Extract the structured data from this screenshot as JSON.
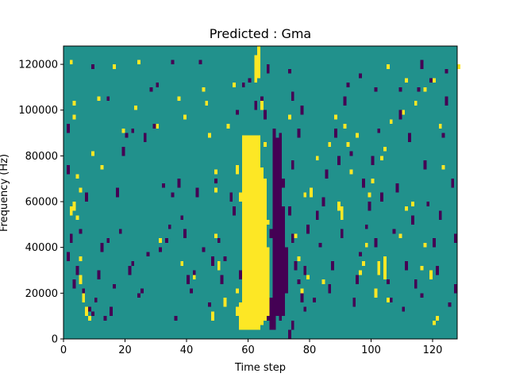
{
  "chart_data": {
    "type": "heatmap",
    "title": "Predicted : Gma",
    "xlabel": "Time step",
    "ylabel": "Frequency (Hz)",
    "xlim": [
      0,
      128
    ],
    "ylim": [
      0,
      128000
    ],
    "x_ticks": [
      0,
      20,
      40,
      60,
      80,
      100,
      120
    ],
    "y_ticks": [
      0,
      20000,
      40000,
      60000,
      80000,
      100000,
      120000
    ],
    "grid": false,
    "legend": "none",
    "colormap": "viridis",
    "value_range": [
      -1,
      1
    ],
    "colors": {
      "low": "#440154",
      "mid": "#21918c",
      "high": "#fde725"
    },
    "background_value": 0,
    "time_bins": 128,
    "freq_bins": 128,
    "freq_bin_hz": 1000,
    "high_cells": [
      [
        58,
        4,
        89
      ],
      [
        59,
        4,
        89
      ],
      [
        60,
        4,
        89
      ],
      [
        61,
        4,
        89
      ],
      [
        62,
        4,
        89
      ],
      [
        63,
        4,
        89
      ],
      [
        64,
        6,
        75
      ],
      [
        65,
        8,
        70
      ],
      [
        66,
        10,
        40
      ],
      [
        57,
        4,
        16
      ],
      [
        56,
        10,
        14
      ],
      [
        59,
        60,
        70
      ],
      [
        57,
        60,
        64
      ],
      [
        58,
        48,
        52
      ],
      [
        56,
        72,
        76
      ],
      [
        62,
        112,
        124
      ],
      [
        63,
        114,
        128
      ],
      [
        64,
        100,
        104
      ],
      [
        3,
        56,
        60
      ],
      [
        2,
        54,
        58
      ],
      [
        4,
        52,
        54
      ],
      [
        5,
        34,
        36
      ],
      [
        5,
        24,
        28
      ],
      [
        6,
        16,
        20
      ],
      [
        7,
        10,
        14
      ],
      [
        8,
        8,
        10
      ],
      [
        2,
        120,
        122
      ],
      [
        3,
        96,
        98
      ],
      [
        3,
        102,
        104
      ],
      [
        4,
        70,
        72
      ],
      [
        5,
        64,
        66
      ],
      [
        9,
        80,
        82
      ],
      [
        12,
        74,
        76
      ],
      [
        11,
        104,
        106
      ],
      [
        16,
        118,
        120
      ],
      [
        19,
        90,
        92
      ],
      [
        23,
        100,
        102
      ],
      [
        30,
        92,
        94
      ],
      [
        31,
        42,
        44
      ],
      [
        37,
        104,
        106
      ],
      [
        38,
        32,
        34
      ],
      [
        39,
        96,
        98
      ],
      [
        42,
        26,
        28
      ],
      [
        45,
        108,
        110
      ],
      [
        46,
        102,
        104
      ],
      [
        47,
        88,
        90
      ],
      [
        48,
        8,
        12
      ],
      [
        49,
        64,
        66
      ],
      [
        50,
        30,
        34
      ],
      [
        49,
        72,
        74
      ],
      [
        49,
        44,
        46
      ],
      [
        24,
        120,
        122
      ],
      [
        52,
        14,
        18
      ],
      [
        53,
        92,
        94
      ],
      [
        55,
        110,
        112
      ],
      [
        56,
        20,
        22
      ],
      [
        75,
        44,
        46
      ],
      [
        76,
        34,
        36
      ],
      [
        77,
        20,
        22
      ],
      [
        79,
        26,
        28
      ],
      [
        80,
        62,
        66
      ],
      [
        82,
        78,
        80
      ],
      [
        84,
        24,
        26
      ],
      [
        86,
        84,
        86
      ],
      [
        88,
        96,
        98
      ],
      [
        89,
        56,
        60
      ],
      [
        90,
        52,
        58
      ],
      [
        91,
        92,
        94
      ],
      [
        92,
        84,
        86
      ],
      [
        93,
        72,
        74
      ],
      [
        95,
        88,
        90
      ],
      [
        96,
        28,
        30
      ],
      [
        97,
        32,
        34
      ],
      [
        98,
        40,
        42
      ],
      [
        99,
        62,
        64
      ],
      [
        100,
        68,
        70
      ],
      [
        101,
        18,
        22
      ],
      [
        102,
        28,
        34
      ],
      [
        104,
        26,
        36
      ],
      [
        105,
        16,
        18
      ],
      [
        104,
        82,
        84
      ],
      [
        103,
        78,
        80
      ],
      [
        106,
        94,
        96
      ],
      [
        105,
        118,
        120
      ],
      [
        110,
        98,
        100
      ],
      [
        111,
        112,
        114
      ],
      [
        113,
        58,
        60
      ],
      [
        114,
        102,
        104
      ],
      [
        116,
        30,
        32
      ],
      [
        117,
        40,
        42
      ],
      [
        119,
        26,
        30
      ],
      [
        120,
        6,
        8
      ],
      [
        121,
        8,
        10
      ],
      [
        123,
        74,
        76
      ],
      [
        128,
        118,
        120
      ],
      [
        109,
        44,
        46
      ],
      [
        111,
        56,
        58
      ],
      [
        117,
        108,
        110
      ],
      [
        120,
        112,
        114
      ],
      [
        122,
        92,
        94
      ],
      [
        66,
        50,
        52
      ],
      [
        65,
        84,
        86
      ],
      [
        73,
        96,
        98
      ],
      [
        78,
        62,
        64
      ]
    ],
    "low_cells": [
      [
        67,
        4,
        18
      ],
      [
        68,
        4,
        92
      ],
      [
        69,
        10,
        88
      ],
      [
        70,
        8,
        90
      ],
      [
        71,
        10,
        58
      ],
      [
        72,
        20,
        40
      ],
      [
        66,
        8,
        14
      ],
      [
        65,
        26,
        30
      ],
      [
        66,
        34,
        38
      ],
      [
        67,
        44,
        48
      ],
      [
        68,
        56,
        60
      ],
      [
        69,
        62,
        66
      ],
      [
        71,
        66,
        70
      ],
      [
        73,
        54,
        58
      ],
      [
        74,
        42,
        46
      ],
      [
        75,
        30,
        34
      ],
      [
        76,
        24,
        26
      ],
      [
        77,
        16,
        20
      ],
      [
        78,
        12,
        14
      ],
      [
        74,
        4,
        8
      ],
      [
        73,
        0,
        4
      ],
      [
        74,
        74,
        78
      ],
      [
        76,
        88,
        92
      ],
      [
        77,
        98,
        102
      ],
      [
        74,
        104,
        108
      ],
      [
        73,
        116,
        118
      ],
      [
        66,
        116,
        120
      ],
      [
        64,
        104,
        106
      ],
      [
        65,
        96,
        100
      ],
      [
        62,
        100,
        104
      ],
      [
        2,
        42,
        46
      ],
      [
        3,
        22,
        26
      ],
      [
        4,
        28,
        32
      ],
      [
        5,
        46,
        48
      ],
      [
        6,
        18,
        22
      ],
      [
        7,
        60,
        64
      ],
      [
        8,
        12,
        14
      ],
      [
        9,
        10,
        12
      ],
      [
        10,
        16,
        18
      ],
      [
        11,
        26,
        30
      ],
      [
        12,
        38,
        42
      ],
      [
        13,
        8,
        10
      ],
      [
        14,
        42,
        44
      ],
      [
        15,
        10,
        14
      ],
      [
        16,
        22,
        24
      ],
      [
        17,
        62,
        66
      ],
      [
        18,
        46,
        48
      ],
      [
        19,
        80,
        84
      ],
      [
        20,
        88,
        90
      ],
      [
        21,
        28,
        32
      ],
      [
        22,
        32,
        34
      ],
      [
        24,
        18,
        20
      ],
      [
        25,
        20,
        22
      ],
      [
        26,
        86,
        90
      ],
      [
        27,
        36,
        38
      ],
      [
        28,
        108,
        110
      ],
      [
        29,
        92,
        94
      ],
      [
        30,
        110,
        112
      ],
      [
        31,
        38,
        40
      ],
      [
        32,
        66,
        68
      ],
      [
        33,
        42,
        44
      ],
      [
        34,
        48,
        50
      ],
      [
        35,
        62,
        64
      ],
      [
        36,
        8,
        10
      ],
      [
        37,
        66,
        70
      ],
      [
        38,
        52,
        54
      ],
      [
        39,
        44,
        48
      ],
      [
        40,
        24,
        28
      ],
      [
        41,
        20,
        22
      ],
      [
        42,
        28,
        30
      ],
      [
        43,
        62,
        66
      ],
      [
        44,
        120,
        122
      ],
      [
        45,
        38,
        40
      ],
      [
        47,
        14,
        16
      ],
      [
        48,
        32,
        36
      ],
      [
        49,
        68,
        70
      ],
      [
        50,
        42,
        44
      ],
      [
        51,
        24,
        28
      ],
      [
        52,
        34,
        36
      ],
      [
        54,
        60,
        64
      ],
      [
        55,
        54,
        58
      ],
      [
        57,
        26,
        30
      ],
      [
        58,
        110,
        112
      ],
      [
        59,
        50,
        52
      ],
      [
        60,
        34,
        38
      ],
      [
        61,
        40,
        42
      ],
      [
        62,
        48,
        52
      ],
      [
        63,
        56,
        58
      ],
      [
        1,
        90,
        94
      ],
      [
        1,
        72,
        76
      ],
      [
        1,
        34,
        38
      ],
      [
        78,
        28,
        32
      ],
      [
        79,
        46,
        50
      ],
      [
        81,
        16,
        18
      ],
      [
        82,
        52,
        56
      ],
      [
        83,
        40,
        42
      ],
      [
        84,
        58,
        62
      ],
      [
        85,
        70,
        74
      ],
      [
        86,
        20,
        24
      ],
      [
        87,
        30,
        34
      ],
      [
        88,
        88,
        92
      ],
      [
        89,
        76,
        80
      ],
      [
        90,
        44,
        48
      ],
      [
        91,
        102,
        106
      ],
      [
        92,
        110,
        112
      ],
      [
        93,
        80,
        82
      ],
      [
        94,
        14,
        18
      ],
      [
        95,
        24,
        28
      ],
      [
        96,
        36,
        38
      ],
      [
        97,
        66,
        70
      ],
      [
        98,
        48,
        50
      ],
      [
        99,
        56,
        60
      ],
      [
        100,
        76,
        80
      ],
      [
        101,
        40,
        44
      ],
      [
        102,
        90,
        92
      ],
      [
        103,
        60,
        64
      ],
      [
        104,
        32,
        36
      ],
      [
        105,
        24,
        26
      ],
      [
        106,
        16,
        18
      ],
      [
        107,
        46,
        48
      ],
      [
        108,
        64,
        68
      ],
      [
        109,
        96,
        100
      ],
      [
        110,
        12,
        14
      ],
      [
        111,
        30,
        34
      ],
      [
        112,
        86,
        90
      ],
      [
        113,
        50,
        54
      ],
      [
        114,
        22,
        26
      ],
      [
        115,
        108,
        110
      ],
      [
        116,
        18,
        20
      ],
      [
        117,
        74,
        78
      ],
      [
        118,
        58,
        60
      ],
      [
        119,
        112,
        114
      ],
      [
        120,
        40,
        44
      ],
      [
        121,
        28,
        32
      ],
      [
        122,
        52,
        56
      ],
      [
        123,
        88,
        90
      ],
      [
        124,
        102,
        106
      ],
      [
        125,
        14,
        16
      ],
      [
        126,
        66,
        70
      ],
      [
        127,
        42,
        46
      ],
      [
        127,
        20,
        24
      ],
      [
        9,
        118,
        120
      ],
      [
        14,
        104,
        106
      ],
      [
        22,
        90,
        92
      ],
      [
        35,
        120,
        122
      ],
      [
        56,
        98,
        100
      ],
      [
        60,
        112,
        114
      ],
      [
        96,
        114,
        116
      ],
      [
        101,
        108,
        110
      ],
      [
        109,
        108,
        110
      ],
      [
        116,
        118,
        122
      ],
      [
        124,
        116,
        118
      ]
    ]
  }
}
